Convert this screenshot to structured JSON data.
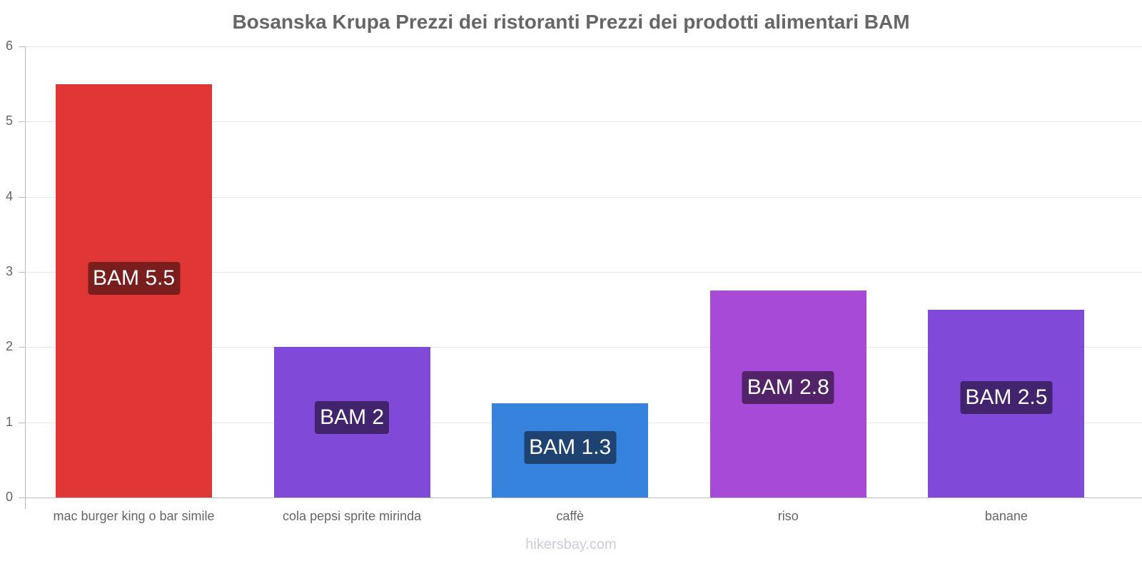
{
  "chart_data": {
    "type": "bar",
    "title": "Bosanska Krupa Prezzi dei ristoranti Prezzi dei prodotti alimentari BAM",
    "xlabel": "",
    "ylabel": "",
    "ylim": [
      0,
      6
    ],
    "yticks": [
      "0",
      "1",
      "2",
      "3",
      "4",
      "5",
      "6"
    ],
    "grid": true,
    "legend": "none",
    "categories": [
      "mac burger king o bar simile",
      "cola pepsi sprite mirinda",
      "caffè",
      "riso",
      "banane"
    ],
    "values": [
      5.5,
      2.0,
      1.25,
      2.75,
      2.5
    ],
    "data_labels": [
      "BAM 5.5",
      "BAM 2",
      "BAM 1.3",
      "BAM 2.8",
      "BAM 2.5"
    ],
    "colors": [
      "#e03636",
      "#8049d8",
      "#3583dd",
      "#a84ad8",
      "#8049d8"
    ],
    "label_colors": [
      "#7a1d1d",
      "#42246e",
      "#1e4370",
      "#532369",
      "#42246e"
    ]
  },
  "footer": "hikersbay.com"
}
